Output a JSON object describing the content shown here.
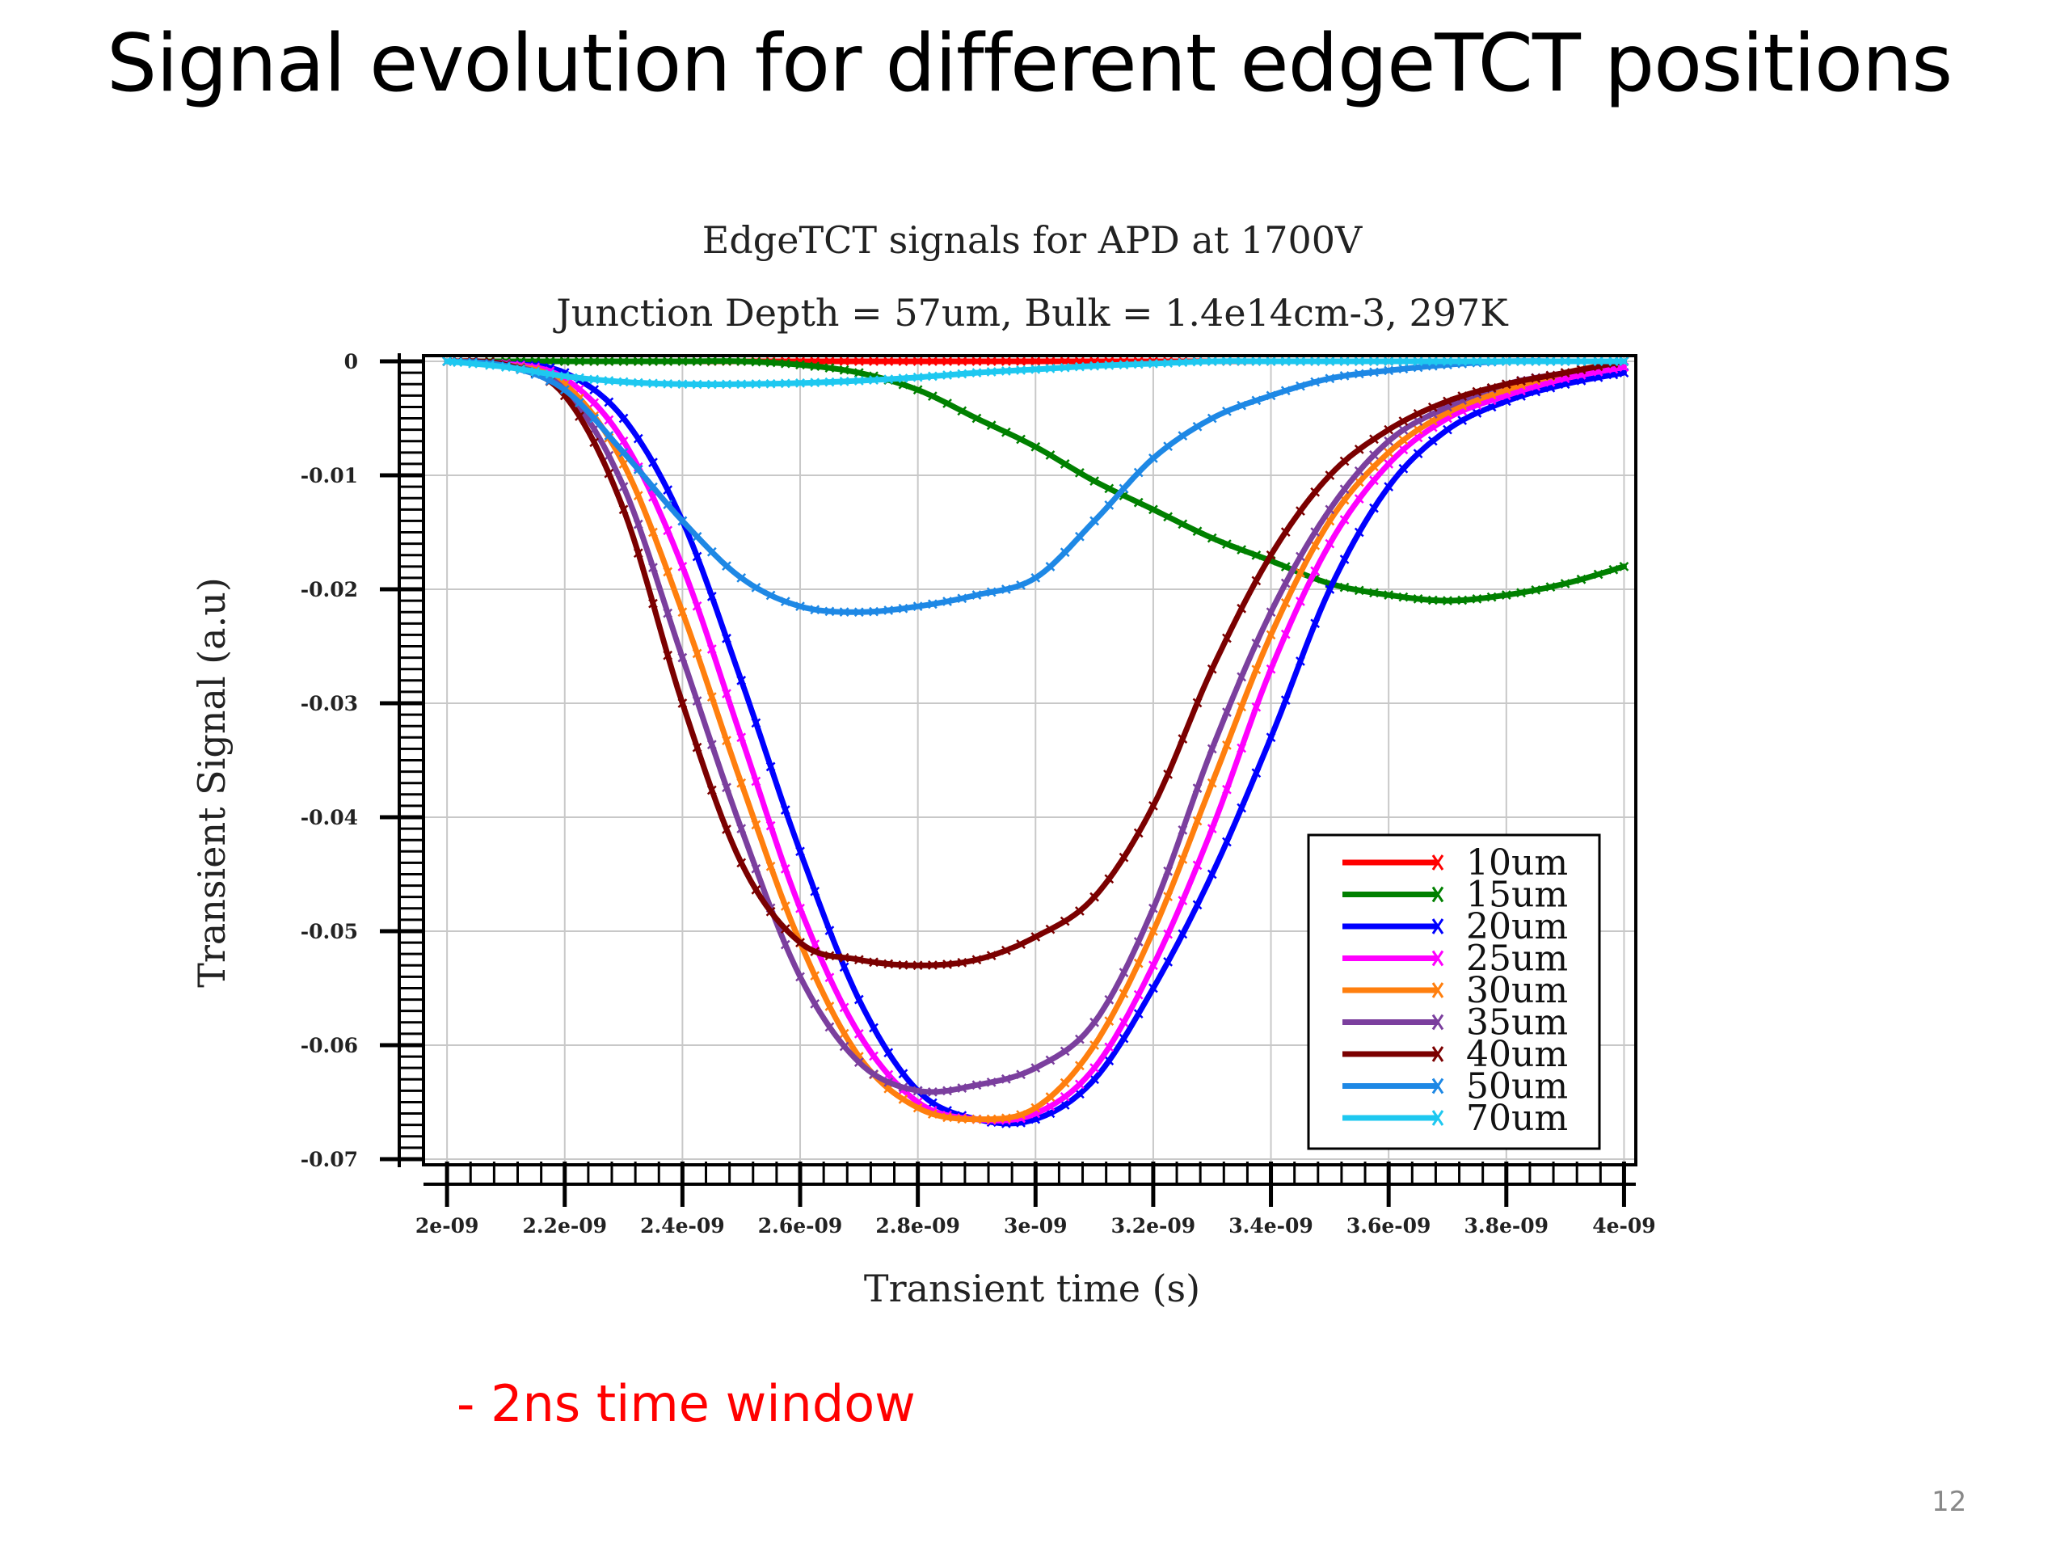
{
  "slide": {
    "title": "Signal evolution for different edgeTCT positions",
    "note": "- 2ns time window",
    "page_number": "12"
  },
  "chart_data": {
    "type": "line",
    "title": "EdgeTCT signals for APD at 1700V",
    "subtitle": "Junction Depth = 57um, Bulk = 1.4e14cm-3, 297K",
    "xlabel": "Transient time (s)",
    "ylabel": "Transient Signal (a.u)",
    "xlim": [
      1.96e-09,
      4.02e-09
    ],
    "ylim": [
      -0.0705,
      0.0005
    ],
    "xticks": [
      2e-09,
      2.2e-09,
      2.4e-09,
      2.6e-09,
      2.8e-09,
      3e-09,
      3.2e-09,
      3.4e-09,
      3.6e-09,
      3.8e-09,
      4e-09
    ],
    "xtick_labels": [
      "2e-09",
      "2.2e-09",
      "2.4e-09",
      "2.6e-09",
      "2.8e-09",
      "3e-09",
      "3.2e-09",
      "3.4e-09",
      "3.6e-09",
      "3.8e-09",
      "4e-09"
    ],
    "yticks": [
      0,
      -0.01,
      -0.02,
      -0.03,
      -0.04,
      -0.05,
      -0.06,
      -0.07
    ],
    "ytick_labels": [
      "0",
      "-0.01",
      "-0.02",
      "-0.03",
      "-0.04",
      "-0.05",
      "-0.06",
      "-0.07"
    ],
    "grid": true,
    "legend_position": "bottom-right",
    "x": [
      2e-09,
      2.1e-09,
      2.2e-09,
      2.3e-09,
      2.4e-09,
      2.5e-09,
      2.6e-09,
      2.7e-09,
      2.8e-09,
      2.9e-09,
      3e-09,
      3.1e-09,
      3.2e-09,
      3.3e-09,
      3.4e-09,
      3.5e-09,
      3.6e-09,
      3.7e-09,
      3.8e-09,
      3.9e-09,
      4e-09
    ],
    "series": [
      {
        "name": "10um",
        "color": "#ff0000",
        "values": [
          0,
          0,
          0,
          0,
          0,
          0,
          0,
          0,
          0,
          0,
          0,
          0,
          0,
          0,
          0,
          0,
          0,
          0,
          0,
          0,
          0
        ]
      },
      {
        "name": "15um",
        "color": "#008000",
        "values": [
          0,
          0,
          0,
          0,
          0,
          0,
          -0.0003,
          -0.001,
          -0.0025,
          -0.005,
          -0.0075,
          -0.0105,
          -0.013,
          -0.0155,
          -0.0175,
          -0.0195,
          -0.0205,
          -0.021,
          -0.0205,
          -0.0195,
          -0.018
        ]
      },
      {
        "name": "20um",
        "color": "#0000ff",
        "values": [
          0,
          -0.0002,
          -0.001,
          -0.005,
          -0.014,
          -0.028,
          -0.043,
          -0.056,
          -0.064,
          -0.0665,
          -0.0665,
          -0.063,
          -0.055,
          -0.045,
          -0.033,
          -0.02,
          -0.011,
          -0.006,
          -0.0035,
          -0.002,
          -0.001
        ]
      },
      {
        "name": "25um",
        "color": "#ff00ff",
        "values": [
          0,
          -0.0002,
          -0.0015,
          -0.007,
          -0.018,
          -0.033,
          -0.048,
          -0.059,
          -0.065,
          -0.0665,
          -0.066,
          -0.062,
          -0.053,
          -0.041,
          -0.027,
          -0.016,
          -0.009,
          -0.005,
          -0.003,
          -0.0015,
          -0.0005
        ]
      },
      {
        "name": "30um",
        "color": "#ff7f0e",
        "values": [
          0,
          -0.0003,
          -0.002,
          -0.009,
          -0.022,
          -0.037,
          -0.051,
          -0.061,
          -0.0655,
          -0.0665,
          -0.0655,
          -0.06,
          -0.05,
          -0.037,
          -0.024,
          -0.014,
          -0.008,
          -0.0045,
          -0.0025,
          -0.001,
          0
        ]
      },
      {
        "name": "35um",
        "color": "#7b3f9e",
        "values": [
          0,
          -0.0003,
          -0.0025,
          -0.011,
          -0.026,
          -0.041,
          -0.054,
          -0.0615,
          -0.064,
          -0.0635,
          -0.062,
          -0.058,
          -0.048,
          -0.034,
          -0.022,
          -0.013,
          -0.007,
          -0.004,
          -0.002,
          -0.001,
          0
        ]
      },
      {
        "name": "40um",
        "color": "#7b0000",
        "values": [
          0,
          -0.0003,
          -0.003,
          -0.013,
          -0.03,
          -0.044,
          -0.051,
          -0.0525,
          -0.053,
          -0.0525,
          -0.0505,
          -0.047,
          -0.039,
          -0.027,
          -0.017,
          -0.01,
          -0.006,
          -0.0035,
          -0.002,
          -0.001,
          0
        ]
      },
      {
        "name": "50um",
        "color": "#1e88e5",
        "values": [
          0,
          -0.0004,
          -0.0025,
          -0.008,
          -0.014,
          -0.019,
          -0.0215,
          -0.022,
          -0.0215,
          -0.0205,
          -0.019,
          -0.014,
          -0.0085,
          -0.005,
          -0.003,
          -0.0015,
          -0.0008,
          -0.0003,
          0,
          0,
          0
        ]
      },
      {
        "name": "70um",
        "color": "#1ec8f0",
        "values": [
          0,
          -0.0005,
          -0.0013,
          -0.0018,
          -0.002,
          -0.002,
          -0.0019,
          -0.0017,
          -0.0014,
          -0.001,
          -0.0007,
          -0.0004,
          -0.0002,
          0,
          0,
          0,
          0,
          0,
          0,
          0,
          0
        ]
      }
    ]
  }
}
